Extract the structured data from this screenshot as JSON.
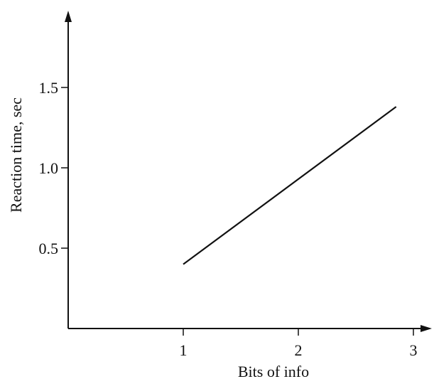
{
  "chart_data": {
    "type": "line",
    "title": "",
    "xlabel": "Bits of info",
    "ylabel": "Reaction time, sec",
    "xlim": [
      0,
      3.3
    ],
    "ylim": [
      0,
      1.9
    ],
    "x_ticks": [
      {
        "value": 1,
        "label": "1"
      },
      {
        "value": 2,
        "label": "2"
      },
      {
        "value": 3,
        "label": "3"
      }
    ],
    "y_ticks": [
      {
        "value": 0.5,
        "label": "0.5"
      },
      {
        "value": 1.0,
        "label": "1.0"
      },
      {
        "value": 1.5,
        "label": "1.5"
      }
    ],
    "grid": false,
    "legend": "none",
    "series": [
      {
        "x": [
          1.0,
          2.85
        ],
        "y": [
          0.4,
          1.38
        ]
      }
    ]
  }
}
